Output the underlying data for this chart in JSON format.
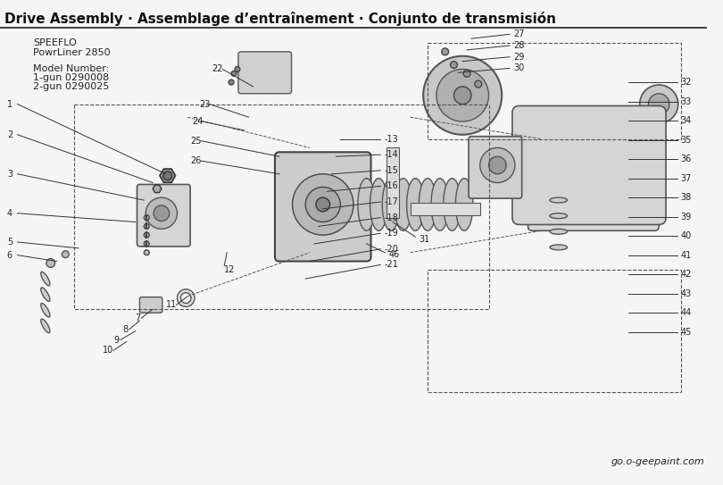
{
  "title": "Drive Assembly · Assemblage d’entraînement · Conjunto de transmisión",
  "subtitle_line1": "SPEEFLO",
  "subtitle_line2": "PowrLiner 2850",
  "model_label": "Model Number:",
  "model_1gun": "1-gun 0290008",
  "model_2gun": "2-gun 0290025",
  "website": "go.o-geepaint.com",
  "bg_color": "#f5f5f5",
  "title_color": "#1a1a1a",
  "line_color": "#333333",
  "text_color": "#222222",
  "dashed_color": "#555555",
  "part_numbers_left": [
    1,
    2,
    3,
    4,
    5,
    6,
    7,
    8,
    9,
    10,
    11,
    12
  ],
  "part_numbers_center": [
    13,
    14,
    15,
    16,
    17,
    18,
    19,
    20,
    21,
    22,
    23,
    24,
    25,
    26,
    31,
    46
  ],
  "part_numbers_right": [
    27,
    28,
    29,
    30,
    32,
    33,
    34,
    35,
    36,
    37,
    38,
    39,
    40,
    41,
    42,
    43,
    44,
    45
  ]
}
